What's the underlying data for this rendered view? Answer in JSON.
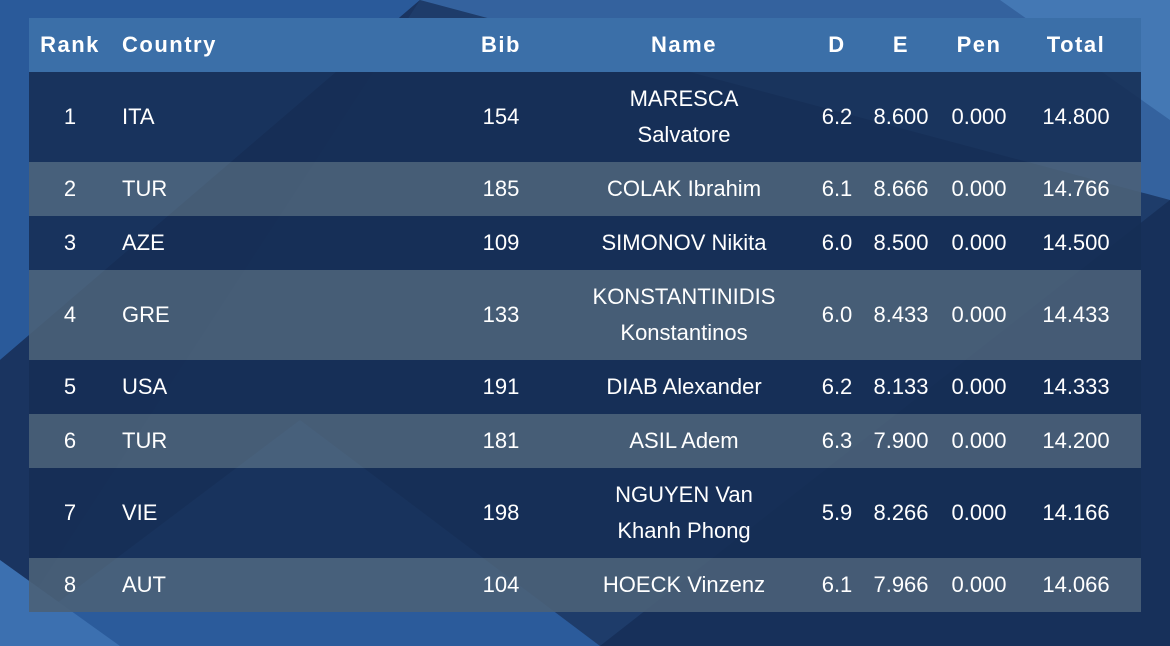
{
  "table": {
    "columns": {
      "rank": "Rank",
      "country": "Country",
      "bib": "Bib",
      "name": "Name",
      "d": "D",
      "e": "E",
      "pen": "Pen",
      "total": "Total"
    },
    "rows": [
      {
        "rank": "1",
        "country": "ITA",
        "bib": "154",
        "name_line1": "MARESCA",
        "name_line2": "Salvatore",
        "d": "6.2",
        "e": "8.600",
        "pen": "0.000",
        "total": "14.800"
      },
      {
        "rank": "2",
        "country": "TUR",
        "bib": "185",
        "name_line1": "COLAK Ibrahim",
        "name_line2": "",
        "d": "6.1",
        "e": "8.666",
        "pen": "0.000",
        "total": "14.766"
      },
      {
        "rank": "3",
        "country": "AZE",
        "bib": "109",
        "name_line1": "SIMONOV Nikita",
        "name_line2": "",
        "d": "6.0",
        "e": "8.500",
        "pen": "0.000",
        "total": "14.500"
      },
      {
        "rank": "4",
        "country": "GRE",
        "bib": "133",
        "name_line1": "KONSTANTINIDIS",
        "name_line2": "Konstantinos",
        "d": "6.0",
        "e": "8.433",
        "pen": "0.000",
        "total": "14.433"
      },
      {
        "rank": "5",
        "country": "USA",
        "bib": "191",
        "name_line1": "DIAB Alexander",
        "name_line2": "",
        "d": "6.2",
        "e": "8.133",
        "pen": "0.000",
        "total": "14.333"
      },
      {
        "rank": "6",
        "country": "TUR",
        "bib": "181",
        "name_line1": "ASIL Adem",
        "name_line2": "",
        "d": "6.3",
        "e": "7.900",
        "pen": "0.000",
        "total": "14.200"
      },
      {
        "rank": "7",
        "country": "VIE",
        "bib": "198",
        "name_line1": "NGUYEN Van",
        "name_line2": "Khanh Phong",
        "d": "5.9",
        "e": "8.266",
        "pen": "0.000",
        "total": "14.166"
      },
      {
        "rank": "8",
        "country": "AUT",
        "bib": "104",
        "name_line1": "HOECK Vinzenz",
        "name_line2": "",
        "d": "6.1",
        "e": "7.966",
        "pen": "0.000",
        "total": "14.066"
      }
    ]
  },
  "colors": {
    "header_bg": "#3b6fa8",
    "row_dark": "#162e54",
    "row_light": "#4a6078",
    "background": "#1d3a66"
  }
}
